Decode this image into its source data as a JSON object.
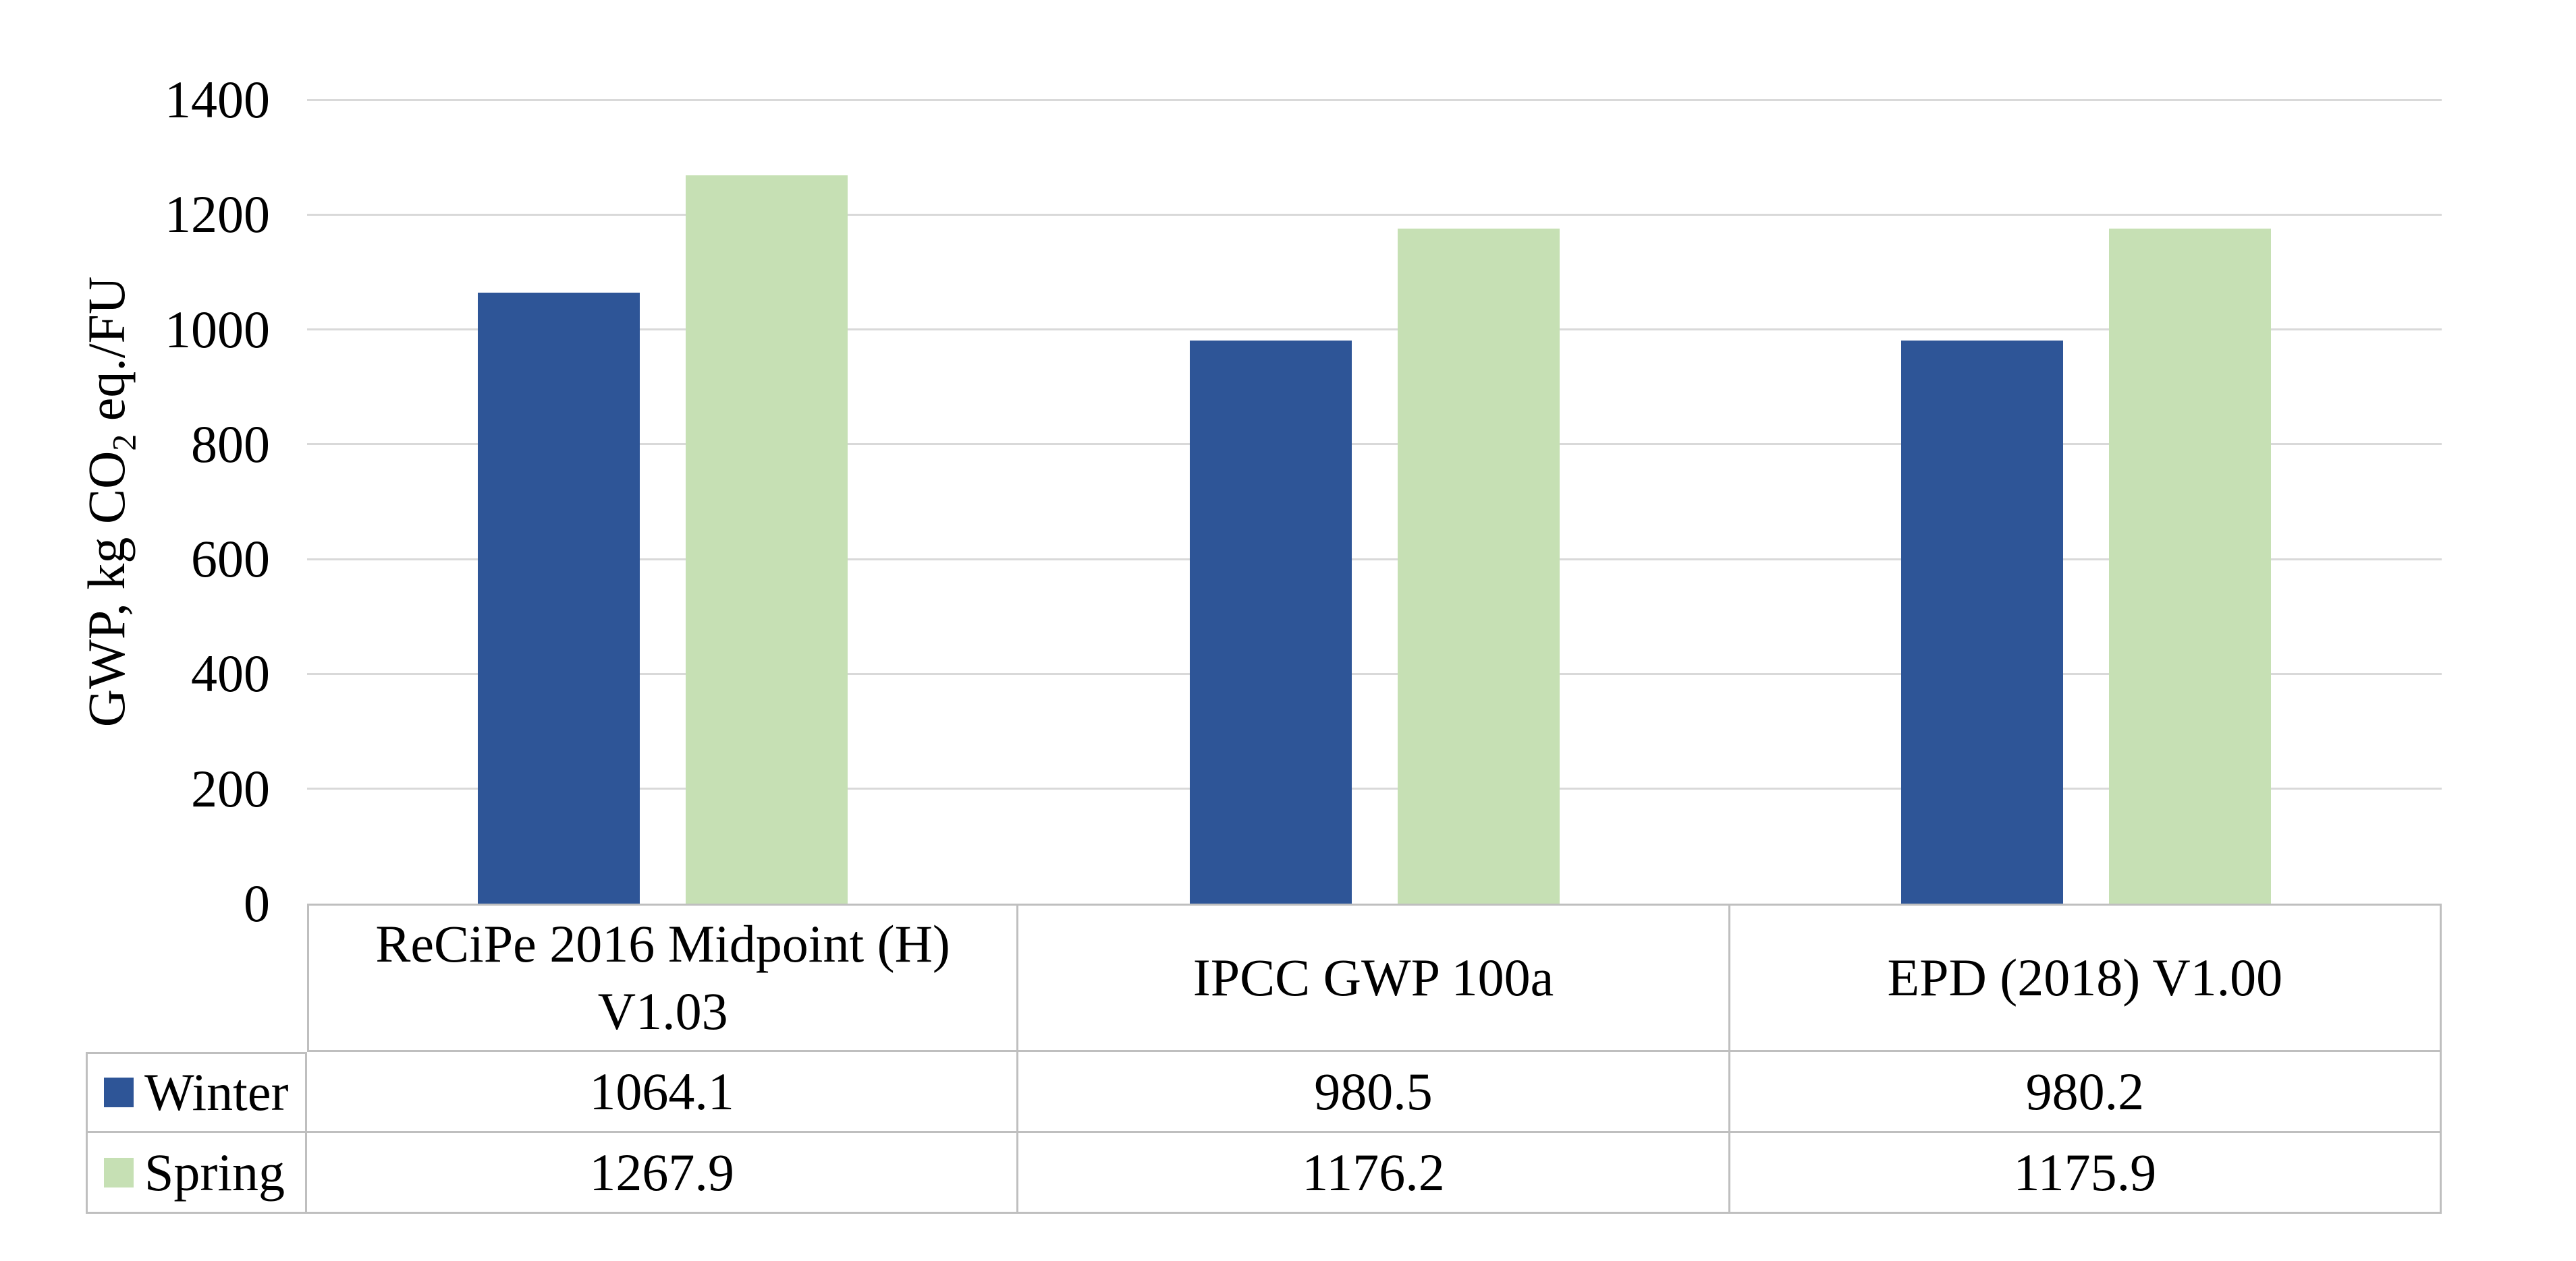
{
  "chart_data": {
    "type": "bar",
    "title": "",
    "categories": [
      "ReCiPe 2016 Midpoint (H) V1.03",
      "IPCC GWP 100a",
      "EPD (2018) V1.00"
    ],
    "series": [
      {
        "name": "Winter",
        "color": "#2E5597",
        "values": [
          1064.1,
          980.5,
          980.2
        ]
      },
      {
        "name": "Spring",
        "color": "#C6E0B4",
        "values": [
          1267.9,
          1176.2,
          1175.9
        ]
      }
    ],
    "ylabel": "GWP, kg CO2 eq./FU",
    "ylabel_parts": {
      "pre": "GWP, kg CO",
      "sub": "2",
      "post": " eq./FU"
    },
    "xlabel": "",
    "ylim": [
      0,
      1400
    ],
    "yticks": [
      0,
      200,
      400,
      600,
      800,
      1000,
      1200,
      1400
    ],
    "grid": true,
    "gridline_color": "#D9D9D9",
    "table_border_color": "#BFBFBF",
    "text_color": "#000000",
    "background_color": "#FFFFFF",
    "legend_position": "table-rows-left",
    "value_decimals": 1
  }
}
